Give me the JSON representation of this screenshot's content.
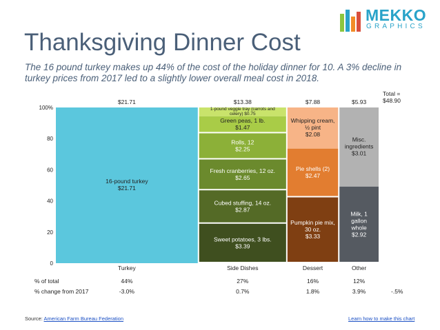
{
  "header": {
    "title": "Thanksgiving Dinner Cost",
    "subtitle": "The 16 pound turkey makes up 44% of the cost of the holiday dinner for 10.  A 3% decline in turkey prices from 2017 led to a slightly lower overall meal cost in 2018."
  },
  "logo": {
    "line1": "MEKKO",
    "line2": "GRAPHICS"
  },
  "footer": {
    "source_prefix": "Source: ",
    "source_link": "American Farm Bureau Federation",
    "how_to_link": "Learn how to make this chart"
  },
  "colors": {
    "turkey": "#5bc7dd",
    "side_dark": "#3f4f1f",
    "side_mid1": "#546a26",
    "side_mid2": "#6b8a2d",
    "side_mid3": "#8cb038",
    "side_light": "#a9cc47",
    "side_lightest": "#c9e36b",
    "dessert_dark": "#7f3f12",
    "dessert_mid": "#e27d30",
    "dessert_light": "#f7b487",
    "other_dark": "#555a61",
    "other_light": "#b2b2b2"
  },
  "chart_data": {
    "type": "marimekko",
    "title": "Thanksgiving Dinner Cost",
    "ylim": [
      0,
      100
    ],
    "y_ticks": [
      "0",
      "20",
      "40",
      "60",
      "80",
      "100%"
    ],
    "y_tick_values": [
      0,
      20,
      40,
      60,
      80,
      100
    ],
    "total_label": "Total =\n$48.90",
    "columns": [
      {
        "name": "Turkey",
        "total": 21.71,
        "total_label": "$21.71",
        "pct_of_total": "44%",
        "change": "-3.0%",
        "segments": [
          {
            "label": "16-pound turkey\n$21.71",
            "value": 21.71,
            "color": "#5bc7dd",
            "text_color": "#222222"
          }
        ]
      },
      {
        "name": "Side Dishes",
        "total": 13.38,
        "total_label": "$13.38",
        "pct_of_total": "27%",
        "change": "0.7%",
        "segments": [
          {
            "label": "Sweet potatoes, 3 lbs.\n$3.39",
            "value": 3.39,
            "color": "#3f4f1f",
            "text_color": "#ffffff"
          },
          {
            "label": "Cubed stuffing, 14 oz.\n$2.87",
            "value": 2.87,
            "color": "#546a26",
            "text_color": "#ffffff"
          },
          {
            "label": "Fresh cranberries, 12 oz.\n$2.65",
            "value": 2.65,
            "color": "#6b8a2d",
            "text_color": "#ffffff"
          },
          {
            "label": "Rolls, 12\n$2.25",
            "value": 2.25,
            "color": "#8cb038",
            "text_color": "#ffffff"
          },
          {
            "label": "Green peas, 1 lb.\n$1.47",
            "value": 1.47,
            "color": "#a9cc47",
            "text_color": "#222222"
          },
          {
            "label": "1-pound veggie tray (carrots and\ncelery) $0.75",
            "value": 0.75,
            "color": "#c9e36b",
            "text_color": "#222222",
            "small": true
          }
        ]
      },
      {
        "name": "Dessert",
        "total": 7.88,
        "total_label": "$7.88",
        "pct_of_total": "16%",
        "change": "1.8%",
        "segments": [
          {
            "label": "Pumpkin pie mix,\n30 oz.\n$3.33",
            "value": 3.33,
            "color": "#7f3f12",
            "text_color": "#ffffff"
          },
          {
            "label": "Pie shells (2)\n$2.47",
            "value": 2.47,
            "color": "#e27d30",
            "text_color": "#ffffff"
          },
          {
            "label": "Whipping cream,\n½ pint\n$2.08",
            "value": 2.08,
            "color": "#f7b487",
            "text_color": "#222222"
          }
        ]
      },
      {
        "name": "Other",
        "total": 5.93,
        "total_label": "$5.93",
        "pct_of_total": "12%",
        "change": "3.9%",
        "segments": [
          {
            "label": "Milk, 1\ngallon\nwhole\n$2.92",
            "value": 2.92,
            "color": "#555a61",
            "text_color": "#ffffff"
          },
          {
            "label": "Misc.\ningredients\n$3.01",
            "value": 3.01,
            "color": "#b2b2b2",
            "text_color": "#222222"
          }
        ]
      }
    ],
    "row_labels": {
      "pct": "% of total",
      "change": "% change from 2017"
    },
    "total_change": "-.5%"
  }
}
